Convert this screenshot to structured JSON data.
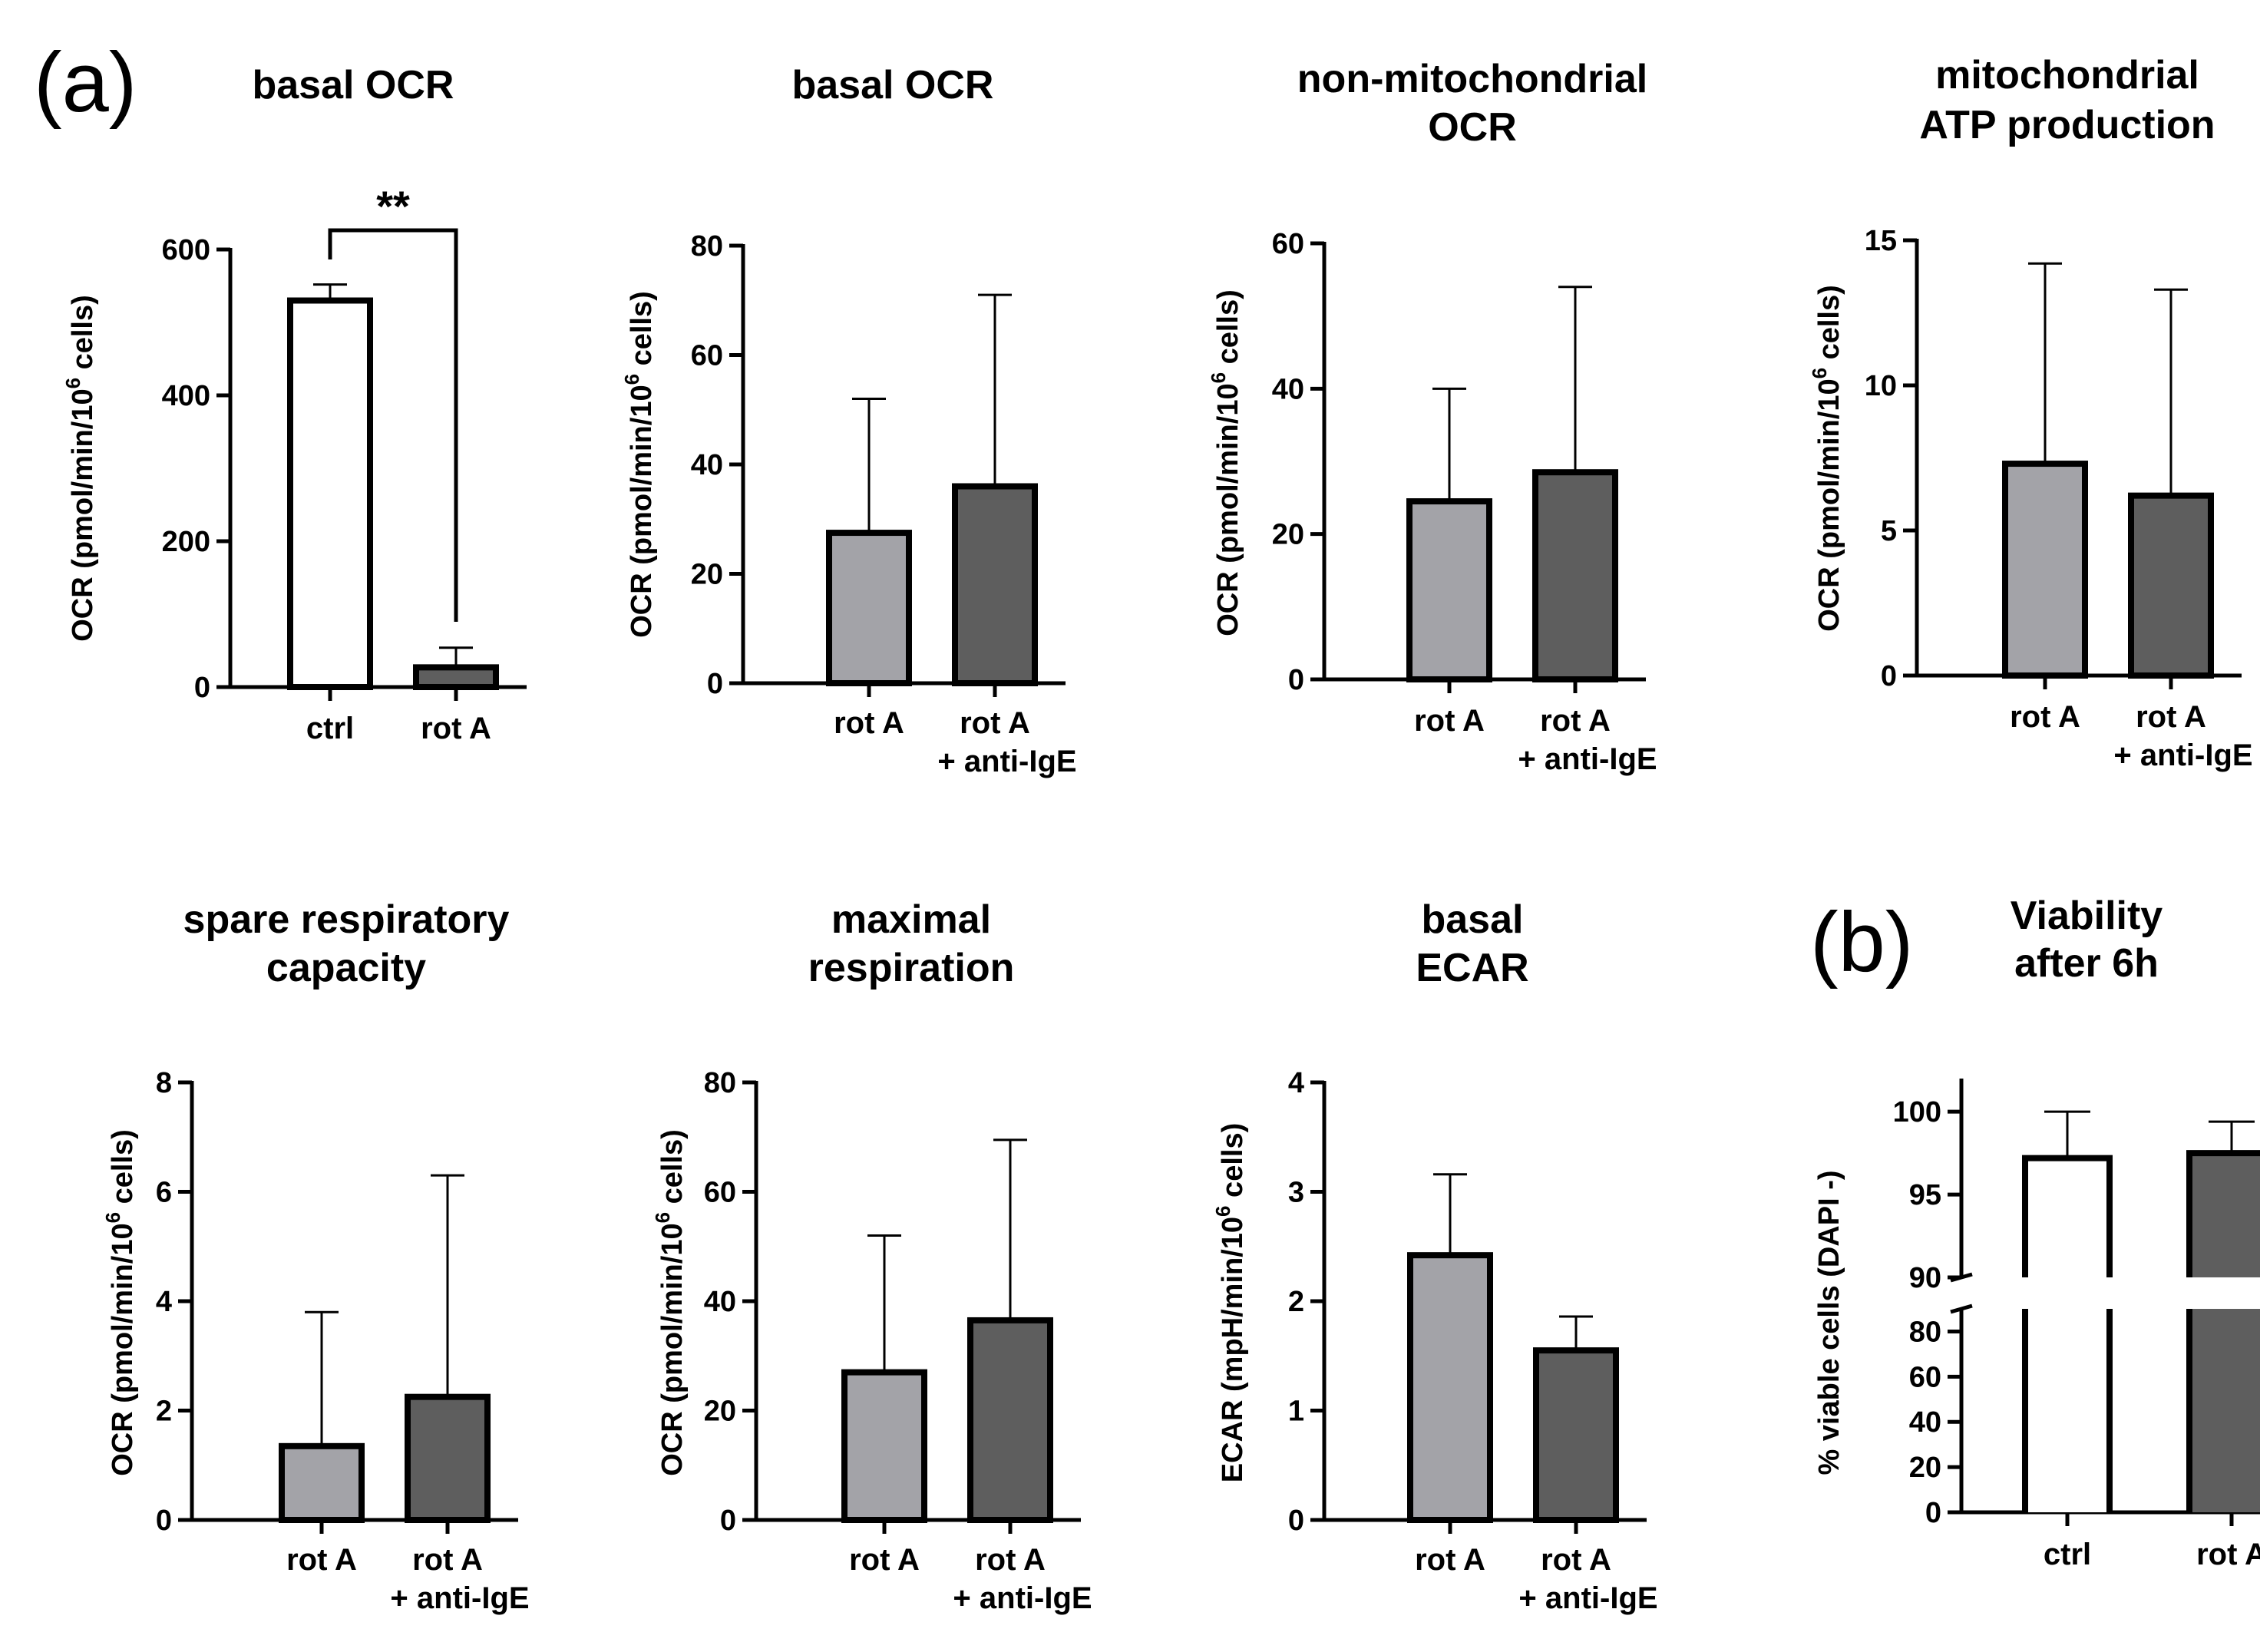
{
  "figure": {
    "panel_labels": [
      "(a)",
      "(b)"
    ],
    "colors": {
      "white_bar": "#ffffff",
      "light_bar": "#a3a3a8",
      "dark_bar": "#5e5e5e"
    }
  },
  "chart_data": [
    {
      "type": "bar",
      "title": "basal OCR",
      "ylabel_main": "OCR (pmol/min/10",
      "ylabel_sup": "6",
      "ylabel_tail": " cells)",
      "ylim": [
        0,
        600
      ],
      "yticks": [
        0,
        200,
        400,
        600
      ],
      "categories": [
        {
          "line1": "ctrl",
          "line2": ""
        },
        {
          "line1": "rot A",
          "line2": ""
        }
      ],
      "values": [
        530,
        27
      ],
      "errors": [
        22,
        27
      ],
      "fills": [
        "white",
        "dark"
      ],
      "significance": "**"
    },
    {
      "type": "bar",
      "title": "basal OCR",
      "ylabel_main": "OCR (pmol/min/10",
      "ylabel_sup": "6",
      "ylabel_tail": " cells)",
      "ylim": [
        0,
        80
      ],
      "yticks": [
        0,
        20,
        40,
        60,
        80
      ],
      "categories": [
        {
          "line1": "rot A",
          "line2": ""
        },
        {
          "line1": "rot A",
          "line2": "+ anti-IgE"
        }
      ],
      "values": [
        27.5,
        36
      ],
      "errors": [
        24.5,
        35
      ],
      "fills": [
        "light",
        "dark"
      ]
    },
    {
      "type": "bar",
      "title": [
        "non-mitochondrial",
        "OCR"
      ],
      "ylabel_main": "OCR (pmol/min/10",
      "ylabel_sup": "6",
      "ylabel_tail": " cells)",
      "ylim": [
        0,
        60
      ],
      "yticks": [
        0,
        20,
        40,
        60
      ],
      "categories": [
        {
          "line1": "rot A",
          "line2": ""
        },
        {
          "line1": "rot A",
          "line2": "+ anti-IgE"
        }
      ],
      "values": [
        24.5,
        28.5
      ],
      "errors": [
        15.5,
        25.5
      ],
      "fills": [
        "light",
        "dark"
      ]
    },
    {
      "type": "bar",
      "title": [
        "mitochondrial",
        "ATP production"
      ],
      "ylabel_main": "OCR (pmol/min/10",
      "ylabel_sup": "6",
      "ylabel_tail": " cells)",
      "ylim": [
        0,
        15
      ],
      "yticks": [
        0,
        5,
        10,
        15
      ],
      "categories": [
        {
          "line1": "rot A",
          "line2": ""
        },
        {
          "line1": "rot A",
          "line2": "+ anti-IgE"
        }
      ],
      "values": [
        7.3,
        6.2
      ],
      "errors": [
        6.9,
        7.1
      ],
      "fills": [
        "light",
        "dark"
      ]
    },
    {
      "type": "bar",
      "title": [
        "spare respiratory",
        "capacity"
      ],
      "ylabel_main": "OCR (pmol/min/10",
      "ylabel_sup": "6",
      "ylabel_tail": " cells)",
      "ylim": [
        0,
        8
      ],
      "yticks": [
        0,
        2,
        4,
        6,
        8
      ],
      "categories": [
        {
          "line1": "rot A",
          "line2": ""
        },
        {
          "line1": "rot A",
          "line2": "+ anti-IgE"
        }
      ],
      "values": [
        1.35,
        2.25
      ],
      "errors": [
        2.45,
        4.05
      ],
      "fills": [
        "light",
        "dark"
      ]
    },
    {
      "type": "bar",
      "title": [
        "maximal",
        "respiration"
      ],
      "ylabel_main": "OCR (pmol/min/10",
      "ylabel_sup": "6",
      "ylabel_tail": " cells)",
      "ylim": [
        0,
        80
      ],
      "yticks": [
        0,
        20,
        40,
        60,
        80
      ],
      "categories": [
        {
          "line1": "rot A",
          "line2": ""
        },
        {
          "line1": "rot A",
          "line2": "+ anti-IgE"
        }
      ],
      "values": [
        27,
        36.5
      ],
      "errors": [
        25,
        33
      ],
      "fills": [
        "light",
        "dark"
      ]
    },
    {
      "type": "bar",
      "title": [
        "basal",
        "ECAR"
      ],
      "ylabel_main": "ECAR (mpH/min/10",
      "ylabel_sup": "6",
      "ylabel_tail": " cells)",
      "ylim": [
        0,
        4
      ],
      "yticks": [
        0,
        1,
        2,
        3,
        4
      ],
      "categories": [
        {
          "line1": "rot A",
          "line2": ""
        },
        {
          "line1": "rot A",
          "line2": "+ anti-IgE"
        }
      ],
      "values": [
        2.42,
        1.55
      ],
      "errors": [
        0.74,
        0.31
      ],
      "fills": [
        "light",
        "dark"
      ]
    },
    {
      "type": "bar",
      "title": [
        "Viability",
        "after 6h"
      ],
      "ylabel_main": "% viable cells (DAPI -)",
      "ylabel_sup": "",
      "ylabel_tail": "",
      "broken_axis": true,
      "ylim_lower": [
        0,
        90
      ],
      "yticks_lower": [
        0,
        20,
        40,
        60,
        80
      ],
      "ylim_upper": [
        90,
        102
      ],
      "yticks_upper": [
        90,
        95,
        100
      ],
      "categories": [
        {
          "line1": "ctrl",
          "line2": ""
        },
        {
          "line1": "rot A",
          "line2": ""
        }
      ],
      "values": [
        97.2,
        97.5
      ],
      "errors": [
        2.8,
        1.9
      ],
      "fills": [
        "white",
        "dark"
      ]
    }
  ]
}
